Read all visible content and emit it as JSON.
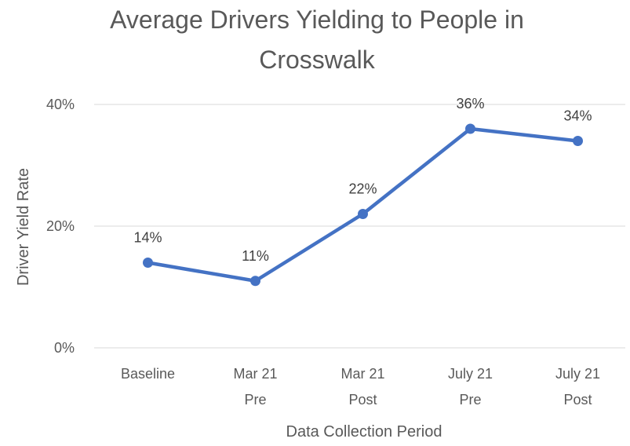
{
  "chart_data": {
    "type": "line",
    "title_lines": [
      "Average Drivers Yielding to People in",
      "Crosswalk"
    ],
    "xlabel": "Data Collection Period",
    "ylabel": "Driver Yield Rate",
    "categories": [
      [
        "Baseline"
      ],
      [
        "Mar 21",
        "Pre"
      ],
      [
        "Mar 21",
        "Post"
      ],
      [
        "July 21",
        "Pre"
      ],
      [
        "July 21",
        "Post"
      ]
    ],
    "series": [
      {
        "values": [
          14,
          11,
          22,
          36,
          34
        ],
        "color": "#4472c4"
      }
    ],
    "data_labels": [
      "14%",
      "11%",
      "22%",
      "36%",
      "34%"
    ],
    "ylim": [
      0,
      40
    ],
    "yticks": [
      0,
      20,
      40
    ],
    "ytick_labels": [
      "0%",
      "20%",
      "40%"
    ],
    "grid": true,
    "legend": "none"
  }
}
